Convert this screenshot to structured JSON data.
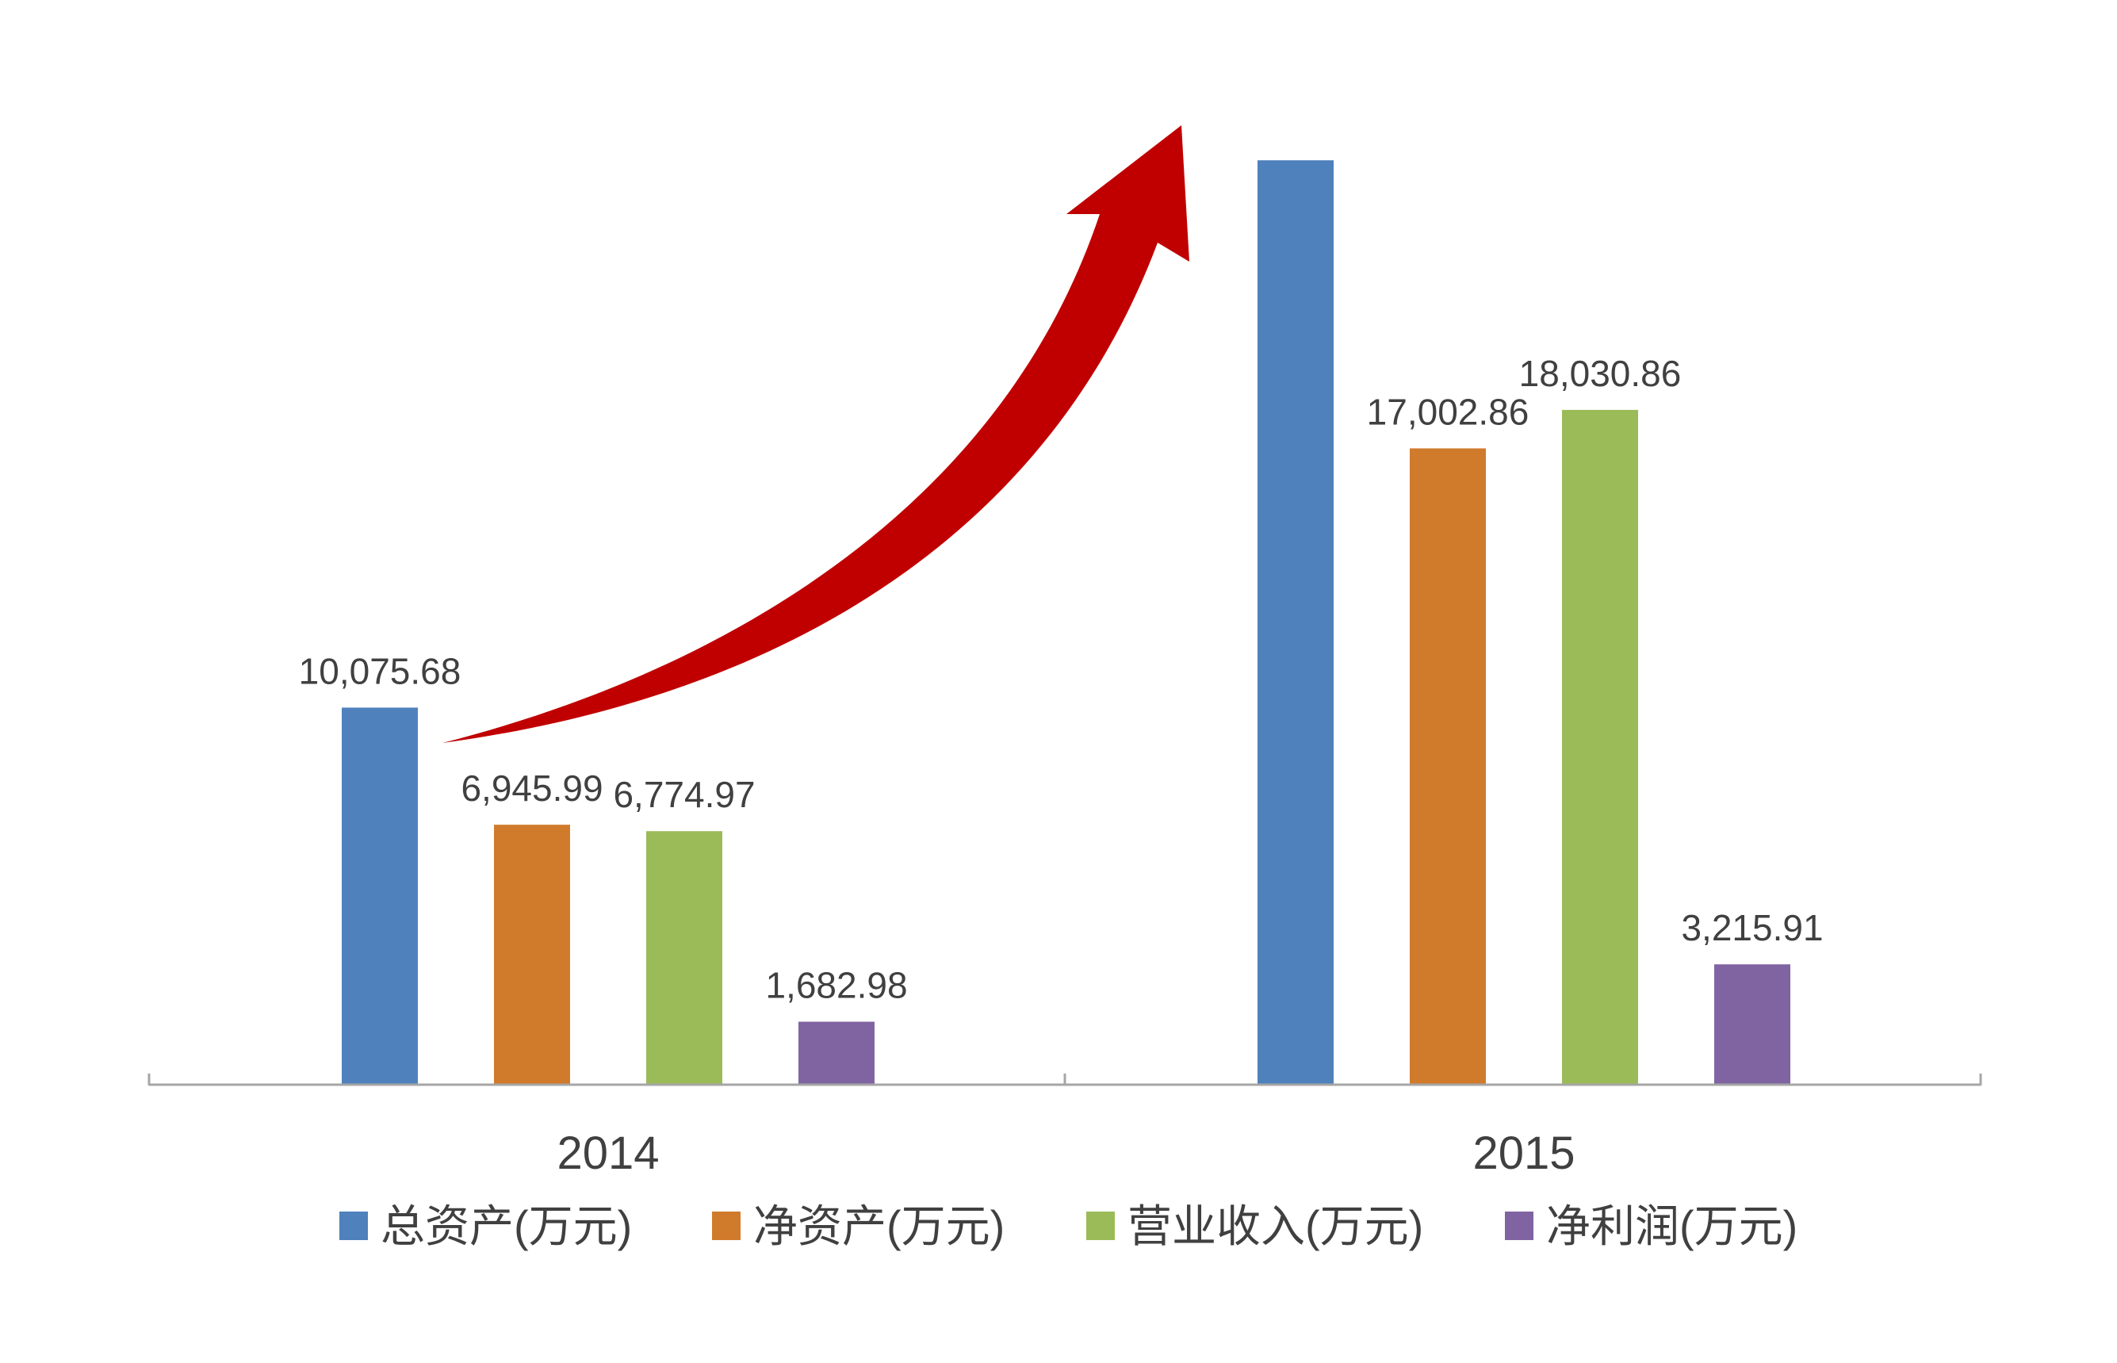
{
  "chart_data": {
    "type": "bar",
    "title": "",
    "xlabel": "",
    "ylabel": "",
    "categories": [
      "2014",
      "2015"
    ],
    "ylim": [
      0,
      25000
    ],
    "grid": false,
    "legend_position": "bottom",
    "series": [
      {
        "name": "总资产(万元)",
        "color": "#4F81BD",
        "values": [
          10075.68,
          24700
        ],
        "labels": [
          "10,075.68",
          ""
        ]
      },
      {
        "name": "净资产(万元)",
        "color": "#D07B2C",
        "values": [
          6945.99,
          17002.86
        ],
        "labels": [
          "6,945.99",
          "17,002.86"
        ]
      },
      {
        "name": "营业收入(万元)",
        "color": "#9BBB59",
        "values": [
          6774.97,
          18030.86
        ],
        "labels": [
          "6,774.97",
          "18,030.86"
        ]
      },
      {
        "name": "净利润(万元)",
        "color": "#8064A2",
        "values": [
          1682.98,
          3215.91
        ],
        "labels": [
          "1,682.98",
          "3,215.91"
        ]
      }
    ],
    "annotations": [
      {
        "type": "arrow",
        "description": "growth",
        "color": "#C00000"
      }
    ]
  }
}
